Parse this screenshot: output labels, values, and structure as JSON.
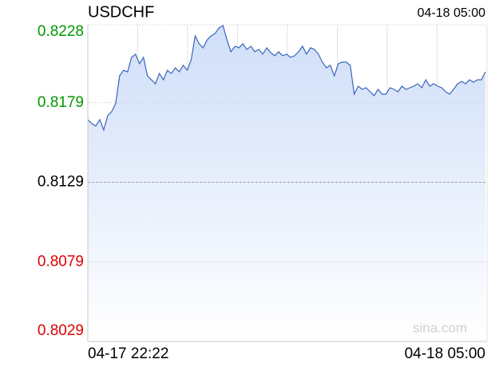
{
  "chart_data": {
    "type": "area",
    "title": "USDCHF",
    "updated": "04-18 05:00",
    "watermark": "sina.com",
    "categories": [
      "04-17 22:22",
      null,
      null,
      null,
      null,
      null,
      null,
      null,
      null,
      null,
      null,
      null,
      null,
      null,
      null,
      null,
      null,
      null,
      null,
      null,
      null,
      null,
      null,
      null,
      null,
      null,
      null,
      null,
      null,
      null,
      null,
      null,
      null,
      null,
      null,
      null,
      null,
      null,
      null,
      null,
      null,
      null,
      null,
      null,
      null,
      null,
      null,
      null,
      null,
      null,
      null,
      null,
      null,
      null,
      null,
      null,
      null,
      null,
      null,
      null,
      null,
      null,
      null,
      null,
      null,
      null,
      null,
      null,
      null,
      null,
      null,
      null,
      null,
      null,
      null,
      null,
      null,
      null,
      null,
      null,
      null,
      null,
      null,
      null,
      null,
      null,
      null,
      null,
      null,
      null,
      null,
      null,
      null,
      null,
      null,
      null,
      null,
      null,
      null,
      null,
      "04-18 05:00"
    ],
    "values": [
      0.81684,
      0.81659,
      0.81644,
      0.81684,
      0.81619,
      0.81709,
      0.81734,
      0.81784,
      0.81959,
      0.81994,
      0.81984,
      0.82075,
      0.82095,
      0.82035,
      0.82075,
      0.81959,
      0.81934,
      0.81909,
      0.81974,
      0.81934,
      0.81994,
      0.81974,
      0.82009,
      0.81984,
      0.82025,
      0.81994,
      0.8206,
      0.8221,
      0.8216,
      0.82135,
      0.82185,
      0.8221,
      0.82225,
      0.8226,
      0.82275,
      0.82185,
      0.8211,
      0.82145,
      0.82135,
      0.8216,
      0.82125,
      0.82145,
      0.8211,
      0.82125,
      0.82095,
      0.82135,
      0.82105,
      0.82085,
      0.8211,
      0.82085,
      0.82095,
      0.82075,
      0.82085,
      0.8211,
      0.82145,
      0.82095,
      0.82135,
      0.82125,
      0.82095,
      0.82045,
      0.82009,
      0.82025,
      0.81959,
      0.82035,
      0.82045,
      0.82045,
      0.82025,
      0.81844,
      0.81894,
      0.81874,
      0.81884,
      0.81859,
      0.81834,
      0.81874,
      0.81844,
      0.81844,
      0.81884,
      0.81874,
      0.81859,
      0.81894,
      0.81874,
      0.81884,
      0.81894,
      0.81909,
      0.81884,
      0.81934,
      0.81894,
      0.81909,
      0.81894,
      0.81884,
      0.81859,
      0.81844,
      0.81874,
      0.81909,
      0.81924,
      0.81909,
      0.81934,
      0.81919,
      0.81934,
      0.81934,
      0.81984
    ],
    "color": "#3a65b8",
    "fill_color": "#cfdef8",
    "ylim": [
      0.8029,
      0.8228
    ],
    "yticks": [
      0.8029,
      0.8079,
      0.8129,
      0.8179,
      0.8228
    ],
    "ytick_colors": [
      "#dd0000",
      "#dd0000",
      "#000000",
      "#009900",
      "#009900"
    ],
    "grid": true
  }
}
